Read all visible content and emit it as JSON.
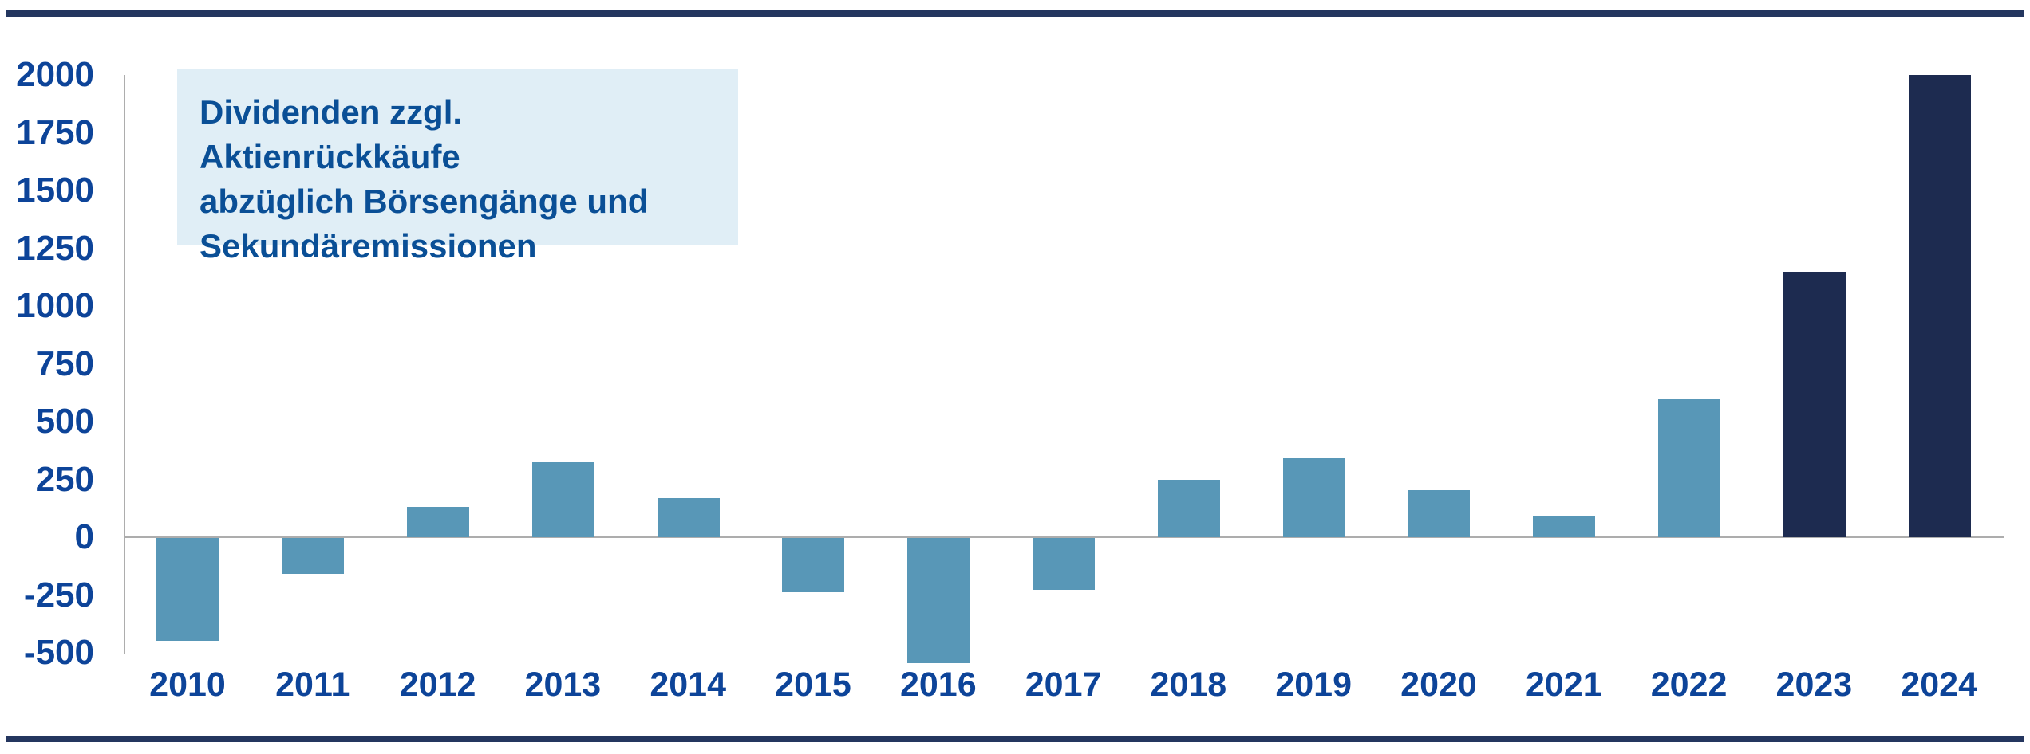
{
  "page": {
    "background": "#ffffff",
    "rule_color": "#24365f"
  },
  "annotation": {
    "lines": [
      "Dividenden zzgl. Aktienrückkäufe",
      "abzüglich Börsengänge und",
      "Sekundäremissionen"
    ],
    "bg_color": "#e0eef6",
    "text_color": "#0a4f96"
  },
  "chart_data": {
    "type": "bar",
    "title": "",
    "xlabel": "",
    "ylabel": "",
    "categories": [
      "2010",
      "2011",
      "2012",
      "2013",
      "2014",
      "2015",
      "2016",
      "2017",
      "2018",
      "2019",
      "2020",
      "2021",
      "2022",
      "2023",
      "2024"
    ],
    "values": [
      -445,
      -155,
      130,
      325,
      170,
      -235,
      -540,
      -225,
      250,
      345,
      205,
      90,
      595,
      1150,
      2000
    ],
    "highlight_categories": [
      "2023",
      "2024"
    ],
    "bar_color_default": "#5897b7",
    "bar_color_highlight": "#1d2b50",
    "ylim": [
      -500,
      2000
    ],
    "ytick_step": 250,
    "yticks": [
      "2000",
      "1750",
      "1500",
      "1250",
      "1000",
      "750",
      "500",
      "250",
      "0",
      "-250",
      "-500"
    ],
    "ytick_values": [
      2000,
      1750,
      1500,
      1250,
      1000,
      750,
      500,
      250,
      0,
      -250,
      -500
    ],
    "grid": "zero-line-only",
    "axis_line_color": "#adadad",
    "tick_label_color": "#0d4499",
    "legend": "none"
  }
}
